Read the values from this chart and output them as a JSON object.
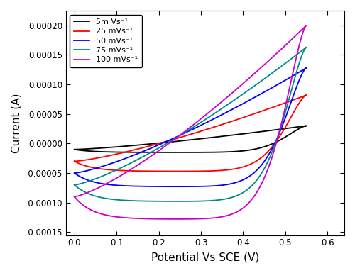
{
  "title": "",
  "xlabel": "Potential Vs SCE (V)",
  "ylabel": "Current (A)",
  "xlim": [
    -0.02,
    0.64
  ],
  "ylim": [
    -0.000155,
    0.000225
  ],
  "legend_labels": [
    "5m Vs⁻¹",
    "25 mVs⁻¹",
    "50 mVs⁻¹",
    "75 mVs⁻¹",
    "100 mVs⁻¹"
  ],
  "colors": [
    "black",
    "red",
    "blue",
    "#008B8B",
    "#CC00CC"
  ],
  "scan_rates": [
    5,
    25,
    50,
    75,
    100
  ],
  "yticks": [
    -0.00015,
    -0.0001,
    -5e-05,
    0.0,
    5e-05,
    0.0001,
    0.00015,
    0.0002
  ],
  "xticks": [
    0.0,
    0.1,
    0.2,
    0.3,
    0.4,
    0.5,
    0.6
  ]
}
